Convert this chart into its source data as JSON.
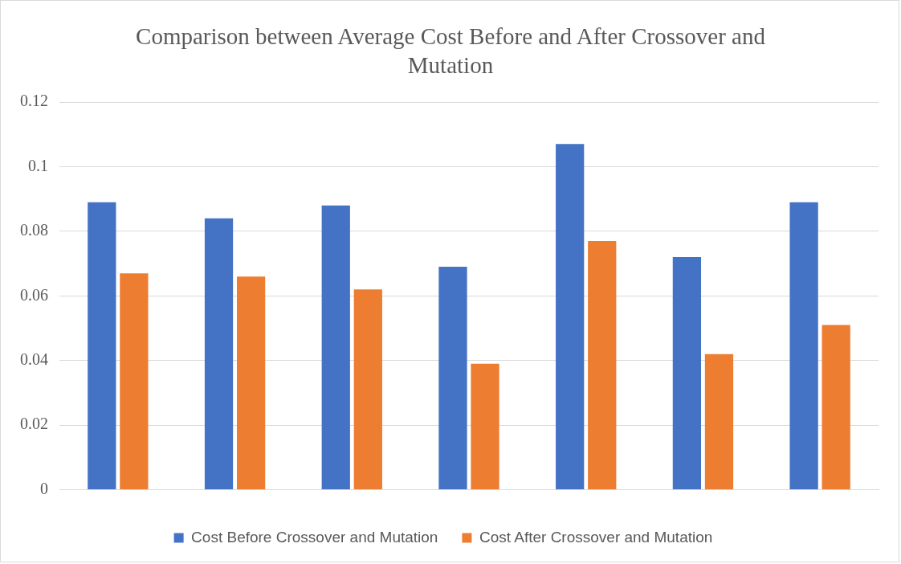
{
  "chart_data": {
    "type": "bar",
    "title": "Comparison between Average Cost Before and After Crossover and Mutation",
    "categories": [
      null,
      null,
      null,
      null,
      null,
      null,
      null
    ],
    "series": [
      {
        "name": "Cost Before Crossover and Mutation",
        "color": "#4472c4",
        "values": [
          0.089,
          0.084,
          0.088,
          0.069,
          0.107,
          0.072,
          0.089
        ]
      },
      {
        "name": "Cost After Crossover and Mutation",
        "color": "#ed7d31",
        "values": [
          0.067,
          0.066,
          0.062,
          0.039,
          0.077,
          0.042,
          0.051
        ]
      }
    ],
    "ylim": [
      0,
      0.12
    ],
    "yticks": [
      0,
      0.02,
      0.04,
      0.06,
      0.08,
      0.1,
      0.12
    ],
    "grid": "y",
    "legend": "bottom"
  }
}
